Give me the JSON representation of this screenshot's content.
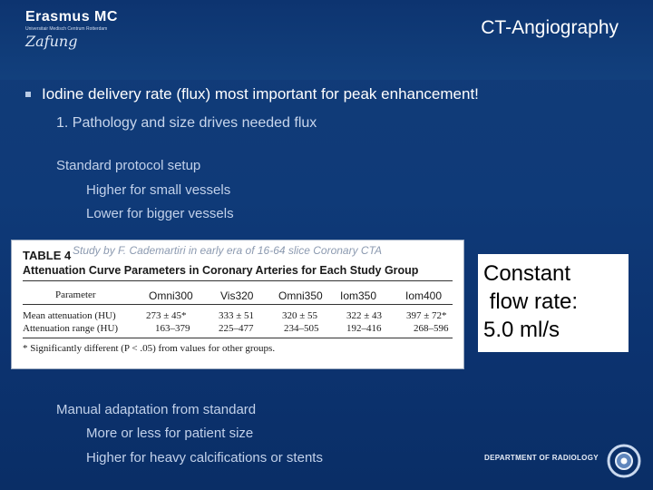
{
  "header": {
    "logo_main": "Erasmus MC",
    "logo_sub": "Universitair Medisch Centrum Rotterdam",
    "logo_script": "Zafung",
    "title": "CT-Angiography"
  },
  "content": {
    "bullet_main": "Iodine delivery rate (flux) most important for peak enhancement!",
    "numbered_item": "1.  Pathology and size drives needed flux",
    "standard_setup": "Standard protocol setup",
    "higher_small": "Higher for small vessels",
    "lower_bigger": "Lower for bigger vessels",
    "manual_adaptation": "Manual adaptation from standard",
    "more_less": "More or less for patient size",
    "higher_heavy": "Higher for heavy calcifications or stents"
  },
  "table": {
    "label": "TABLE 4",
    "overlay": "Study by F. Cademartiri in early era of 16-64 slice Coronary CTA",
    "caption": "Attenuation Curve Parameters in Coronary Arteries for Each Study Group",
    "param_header": "Parameter",
    "columns": [
      "Omni300",
      "Vis320",
      "Omni350",
      "Iom350",
      "Iom400"
    ],
    "rows": [
      {
        "label": "Mean attenuation (HU)",
        "values": [
          "273 ± 45*",
          "333 ± 51",
          "320 ± 55",
          "322 ± 43",
          "397 ± 72*"
        ]
      },
      {
        "label": "Attenuation range (HU)",
        "values": [
          "163–379",
          "225–477",
          "234–505",
          "192–416",
          "268–596"
        ]
      }
    ],
    "footnote": "* Significantly different (P < .05) from values for other groups."
  },
  "callout": {
    "line1": "Constant",
    "line2": " flow rate:",
    "line3": "5.0 ml/s"
  },
  "footer": {
    "department": "DEPARTMENT OF RADIOLOGY"
  },
  "colors": {
    "background": "#0f3a78",
    "title_text": "#ffffff",
    "sub_text": "#c2d1ea"
  }
}
